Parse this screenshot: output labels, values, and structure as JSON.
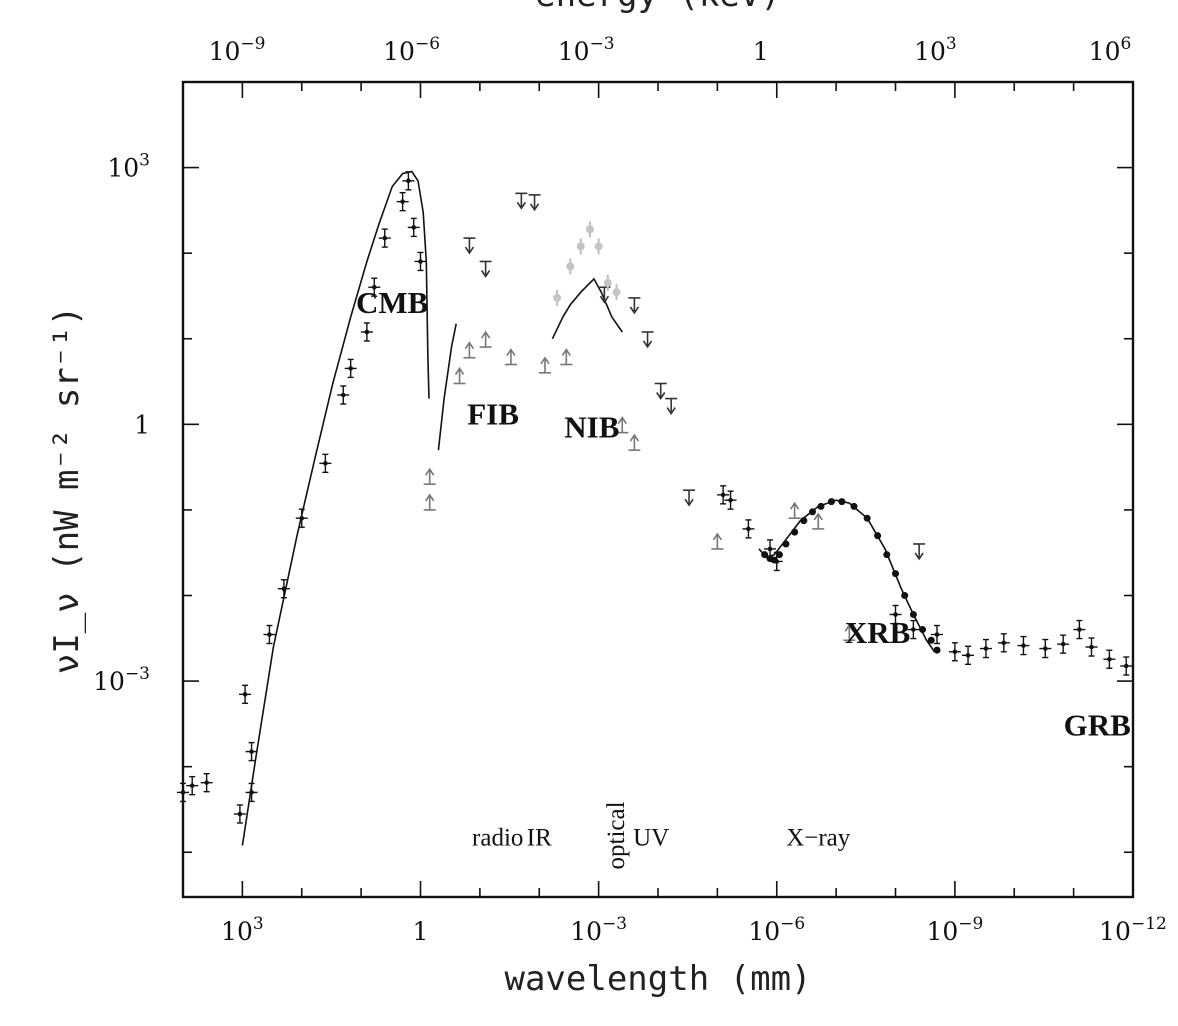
{
  "chart_data": {
    "type": "scatter",
    "title": "",
    "top_axis_title": "energy (keV)",
    "xlabel": "wavelength (mm)",
    "ylabel": "νI_ν (nW m⁻² sr⁻¹)",
    "x_scale": "log",
    "y_scale": "log",
    "x_direction": "decreasing wavelength to the right",
    "xlim": [
      10000,
      1e-12
    ],
    "ylim": [
      3e-06,
      10000
    ],
    "grid": false,
    "legend": "none",
    "x_ticks": [
      {
        "value": 1000,
        "base": "10",
        "exp": "3"
      },
      {
        "value": 1,
        "base": "1",
        "exp": ""
      },
      {
        "value": 0.001,
        "base": "10",
        "exp": "−3"
      },
      {
        "value": 1e-06,
        "base": "10",
        "exp": "−6"
      },
      {
        "value": 1e-09,
        "base": "10",
        "exp": "−9"
      },
      {
        "value": 1e-12,
        "base": "10",
        "exp": "−12"
      }
    ],
    "top_ticks": [
      {
        "value": 1e-09,
        "base": "10",
        "exp": "−9"
      },
      {
        "value": 1e-06,
        "base": "10",
        "exp": "−6"
      },
      {
        "value": 0.001,
        "base": "10",
        "exp": "−3"
      },
      {
        "value": 1,
        "base": "1",
        "exp": ""
      },
      {
        "value": 1000,
        "base": "10",
        "exp": "3"
      },
      {
        "value": 1000000,
        "base": "10",
        "exp": "6"
      }
    ],
    "y_ticks": [
      {
        "value": 1000,
        "base": "10",
        "exp": "3"
      },
      {
        "value": 1,
        "base": "1",
        "exp": ""
      },
      {
        "value": 0.001,
        "base": "10",
        "exp": "−3"
      }
    ],
    "regions": [
      {
        "label": "radio",
        "x": 0.05,
        "y": 1.2e-05
      },
      {
        "label": "IR",
        "x": 0.01,
        "y": 1.2e-05
      },
      {
        "label": "optical",
        "x": 0.00055,
        "y": 1.2e-05,
        "rotated": true
      },
      {
        "label": "UV",
        "x": 0.00013,
        "y": 1.2e-05
      },
      {
        "label": "X−ray",
        "x": 2e-07,
        "y": 1.2e-05
      }
    ],
    "components": [
      {
        "label": "CMB",
        "x": 3,
        "y": 20
      },
      {
        "label": "FIB",
        "x": 0.06,
        "y": 1
      },
      {
        "label": "NIB",
        "x": 0.0013,
        "y": 0.7
      },
      {
        "label": "XRB",
        "x": 2e-08,
        "y": 0.0028
      },
      {
        "label": "GRB",
        "x": 4e-12,
        "y": 0.00023
      }
    ],
    "series": [
      {
        "style": "model-curve",
        "points": [
          [
            1000,
            1.2e-05
          ],
          [
            600,
            0.00012
          ],
          [
            300,
            0.0025
          ],
          [
            120,
            0.05
          ],
          [
            60,
            0.4
          ],
          [
            30,
            3
          ],
          [
            15,
            18
          ],
          [
            8,
            80
          ],
          [
            5,
            220
          ],
          [
            3,
            600
          ],
          [
            2,
            850
          ],
          [
            1.4,
            900
          ],
          [
            1.1,
            700
          ],
          [
            0.9,
            300
          ],
          [
            0.8,
            80
          ],
          [
            0.75,
            6
          ],
          [
            0.72,
            2
          ]
        ]
      },
      {
        "style": "model-curve",
        "points": [
          [
            0.5,
            0.5
          ],
          [
            0.4,
            2
          ],
          [
            0.3,
            8
          ],
          [
            0.25,
            15
          ]
        ]
      },
      {
        "style": "model-curve",
        "points": [
          [
            0.006,
            10
          ],
          [
            0.004,
            18
          ],
          [
            0.003,
            25
          ],
          [
            0.002,
            35
          ],
          [
            0.0012,
            50
          ],
          [
            0.0009,
            35
          ],
          [
            0.0006,
            18
          ],
          [
            0.0004,
            12
          ]
        ]
      },
      {
        "style": "model-curve",
        "points": [
          [
            2e-06,
            0.035
          ],
          [
            1.5e-06,
            0.028
          ],
          [
            1.1e-06,
            0.03
          ],
          [
            7e-07,
            0.045
          ],
          [
            4e-07,
            0.075
          ],
          [
            2e-07,
            0.11
          ],
          [
            1e-07,
            0.13
          ],
          [
            6e-08,
            0.12
          ],
          [
            3e-08,
            0.08
          ],
          [
            1.5e-08,
            0.035
          ],
          [
            8e-09,
            0.012
          ],
          [
            5e-09,
            0.006
          ],
          [
            3e-09,
            0.003
          ],
          [
            2.2e-09,
            0.0022
          ]
        ]
      },
      {
        "style": "error-bar-points",
        "points": [
          [
            10000.0,
            5e-05
          ],
          [
            7000.0,
            6e-05
          ],
          [
            4000.0,
            6.5e-05
          ],
          [
            1100.0,
            2.8e-05
          ],
          [
            900,
            0.0007
          ],
          [
            700,
            5e-05
          ],
          [
            700,
            0.00015
          ],
          [
            350,
            0.0035
          ],
          [
            200,
            0.012
          ],
          [
            100,
            0.08
          ],
          [
            40,
            0.35
          ],
          [
            20,
            2.2
          ],
          [
            15,
            4.5
          ],
          [
            8,
            12
          ],
          [
            6,
            40
          ],
          [
            4,
            150
          ],
          [
            2,
            400
          ],
          [
            1.6,
            700
          ],
          [
            1.3,
            200
          ],
          [
            1,
            80
          ]
        ]
      },
      {
        "style": "upper-limit",
        "points": [
          [
            0.15,
            150
          ],
          [
            0.08,
            80
          ],
          [
            0.02,
            500
          ],
          [
            0.012,
            480
          ],
          [
            0.0008,
            40
          ],
          [
            0.00025,
            30
          ],
          [
            0.00015,
            12
          ],
          [
            9e-05,
            3
          ],
          [
            6e-05,
            2
          ],
          [
            3e-05,
            0.17
          ],
          [
            4e-09,
            0.04
          ]
        ]
      },
      {
        "style": "lower-limit",
        "points": [
          [
            0.7,
            0.2
          ],
          [
            0.7,
            0.1
          ],
          [
            0.22,
            3
          ],
          [
            0.15,
            6
          ],
          [
            0.08,
            8
          ],
          [
            0.03,
            5
          ],
          [
            0.008,
            4
          ],
          [
            0.0035,
            5
          ],
          [
            0.0004,
            0.8
          ],
          [
            0.00025,
            0.5
          ],
          [
            1e-05,
            0.035
          ],
          [
            5e-07,
            0.08
          ],
          [
            2e-07,
            0.06
          ],
          [
            6e-08,
            0.003
          ]
        ]
      },
      {
        "style": "light-gray-points",
        "points": [
          [
            0.005,
            30
          ],
          [
            0.003,
            70
          ],
          [
            0.002,
            120
          ],
          [
            0.0014,
            190
          ],
          [
            0.001,
            120
          ],
          [
            0.0007,
            45
          ],
          [
            0.0005,
            35
          ]
        ]
      },
      {
        "style": "error-bar-points",
        "points": [
          [
            8e-06,
            0.15
          ],
          [
            6e-06,
            0.13
          ],
          [
            3e-06,
            0.06
          ],
          [
            1.3e-06,
            0.035
          ],
          [
            1e-06,
            0.025
          ],
          [
            1e-08,
            0.006
          ],
          [
            5e-09,
            0.004
          ],
          [
            2e-09,
            0.0035
          ],
          [
            1e-09,
            0.0022
          ],
          [
            6e-10,
            0.002
          ],
          [
            3e-10,
            0.0024
          ],
          [
            1.5e-10,
            0.0028
          ],
          [
            7e-11,
            0.0026
          ],
          [
            3e-11,
            0.0024
          ],
          [
            1.5e-11,
            0.0027
          ],
          [
            8e-12,
            0.004
          ],
          [
            5e-12,
            0.0025
          ],
          [
            2.5e-12,
            0.0018
          ],
          [
            1.3e-12,
            0.0015
          ]
        ]
      },
      {
        "style": "dense-points",
        "points": [
          [
            1.6e-06,
            0.03
          ],
          [
            1.3e-06,
            0.027
          ],
          [
            1.1e-06,
            0.026
          ],
          [
            9e-07,
            0.03
          ],
          [
            7e-07,
            0.04
          ],
          [
            5e-07,
            0.055
          ],
          [
            3.5e-07,
            0.075
          ],
          [
            2.5e-07,
            0.095
          ],
          [
            1.8e-07,
            0.11
          ],
          [
            1.2e-07,
            0.125
          ],
          [
            8e-08,
            0.125
          ],
          [
            5e-08,
            0.11
          ],
          [
            3e-08,
            0.08
          ],
          [
            2e-08,
            0.05
          ],
          [
            1.4e-08,
            0.03
          ],
          [
            1e-08,
            0.018
          ],
          [
            7e-09,
            0.01
          ],
          [
            5e-09,
            0.006
          ],
          [
            3.5e-09,
            0.004
          ],
          [
            2.5e-09,
            0.003
          ],
          [
            2e-09,
            0.0023
          ]
        ]
      }
    ]
  }
}
